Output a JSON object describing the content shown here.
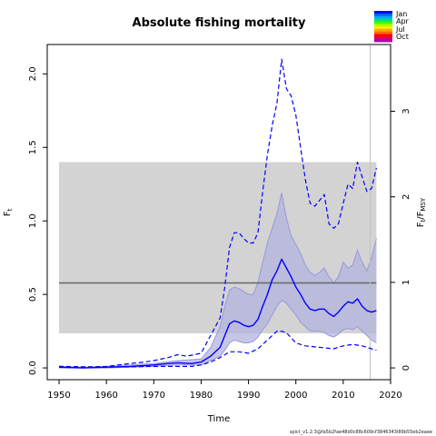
{
  "chart_data": {
    "type": "line",
    "title": "Absolute fishing mortality",
    "xlabel": "Time",
    "ylabel_left": "F_t",
    "ylabel_right": "F_t/F_MSY",
    "xlim": [
      1947.5,
      2020
    ],
    "ylim": [
      -0.08,
      2.2
    ],
    "right_axis_factor": 0.582,
    "x_ticks": [
      1950,
      1960,
      1970,
      1980,
      1990,
      2000,
      2010,
      2020
    ],
    "y_ticks": [
      0.0,
      0.5,
      1.0,
      1.5,
      2.0
    ],
    "y_tick_labels": [
      "0.0",
      "0.5",
      "1.0",
      "1.5",
      "2.0"
    ],
    "right_ticks": [
      0,
      1,
      2,
      3
    ],
    "right_tick_labels": [
      "0",
      "1",
      "2",
      "3"
    ],
    "fmsy_band": {
      "x": [
        1950,
        2017
      ],
      "y": [
        0.235,
        1.4
      ]
    },
    "fmsy_line": {
      "x": [
        1950,
        2017
      ],
      "y": 0.578
    },
    "last_data_year": 2015.7,
    "colors": {
      "estimate": "#0000ff",
      "ci_band": "#b3b3dd",
      "ci_line": "#9999dd",
      "fmsy_band": "#d3d3d3",
      "fmsy_line": "#666666",
      "vline": "#bfbfbf"
    },
    "series": [
      {
        "style": "solid",
        "x": [
          1950,
          1955,
          1960,
          1965,
          1970,
          1973,
          1975,
          1978,
          1980,
          1982,
          1984,
          1985,
          1986,
          1987,
          1988,
          1989,
          1990,
          1991,
          1992,
          1993,
          1994,
          1995,
          1996,
          1997,
          1998,
          1999,
          2000,
          2001,
          2002,
          2003,
          2004,
          2005,
          2006,
          2007,
          2008,
          2009,
          2010,
          2011,
          2012,
          2013,
          2014,
          2015,
          2016,
          2017
        ],
        "y": [
          0.005,
          0.0,
          0.005,
          0.01,
          0.02,
          0.03,
          0.035,
          0.03,
          0.04,
          0.08,
          0.14,
          0.22,
          0.3,
          0.32,
          0.31,
          0.29,
          0.28,
          0.29,
          0.33,
          0.42,
          0.5,
          0.6,
          0.66,
          0.74,
          0.68,
          0.62,
          0.55,
          0.5,
          0.44,
          0.4,
          0.39,
          0.4,
          0.4,
          0.37,
          0.35,
          0.38,
          0.42,
          0.45,
          0.44,
          0.47,
          0.42,
          0.39,
          0.38,
          0.39
        ]
      },
      {
        "style": "dashed",
        "x": [
          1950,
          1955,
          1960,
          1965,
          1968,
          1970,
          1973,
          1975,
          1977,
          1980,
          1982,
          1984,
          1985,
          1986,
          1987,
          1988,
          1989,
          1990,
          1991,
          1992,
          1993,
          1994,
          1995,
          1996,
          1997,
          1998,
          1999,
          2000,
          2001,
          2002,
          2003,
          2004,
          2005,
          2006,
          2007,
          2008,
          2009,
          2010,
          2011,
          2012,
          2013,
          2014,
          2015,
          2016,
          2017
        ],
        "y": [
          0.01,
          0.005,
          0.01,
          0.03,
          0.04,
          0.05,
          0.07,
          0.09,
          0.08,
          0.1,
          0.22,
          0.34,
          0.55,
          0.82,
          0.92,
          0.92,
          0.88,
          0.85,
          0.85,
          0.92,
          1.2,
          1.45,
          1.65,
          1.8,
          2.1,
          1.9,
          1.85,
          1.72,
          1.5,
          1.28,
          1.12,
          1.1,
          1.14,
          1.18,
          0.98,
          0.95,
          0.98,
          1.12,
          1.25,
          1.22,
          1.4,
          1.3,
          1.2,
          1.22,
          1.36
        ]
      },
      {
        "style": "dashed",
        "x": [
          1950,
          1960,
          1970,
          1978,
          1980,
          1982,
          1984,
          1986,
          1988,
          1990,
          1992,
          1994,
          1996,
          1997,
          1998,
          2000,
          2002,
          2005,
          2008,
          2010,
          2012,
          2014,
          2016,
          2017
        ],
        "y": [
          0.01,
          0.005,
          0.01,
          0.01,
          0.02,
          0.04,
          0.07,
          0.11,
          0.11,
          0.1,
          0.13,
          0.19,
          0.25,
          0.25,
          0.24,
          0.17,
          0.15,
          0.14,
          0.13,
          0.15,
          0.16,
          0.15,
          0.13,
          0.12
        ]
      }
    ],
    "ci_band": {
      "x": [
        1950,
        1955,
        1960,
        1965,
        1970,
        1975,
        1980,
        1982,
        1984,
        1985,
        1986,
        1987,
        1988,
        1989,
        1990,
        1991,
        1992,
        1993,
        1994,
        1995,
        1996,
        1997,
        1998,
        1999,
        2000,
        2001,
        2002,
        2003,
        2004,
        2005,
        2006,
        2007,
        2008,
        2009,
        2010,
        2011,
        2012,
        2013,
        2014,
        2015,
        2016,
        2017
      ],
      "upper": [
        0.01,
        0.005,
        0.01,
        0.02,
        0.03,
        0.05,
        0.06,
        0.14,
        0.28,
        0.42,
        0.53,
        0.55,
        0.54,
        0.52,
        0.5,
        0.5,
        0.58,
        0.72,
        0.85,
        0.95,
        1.05,
        1.19,
        1.02,
        0.9,
        0.84,
        0.78,
        0.7,
        0.65,
        0.63,
        0.65,
        0.68,
        0.62,
        0.58,
        0.62,
        0.72,
        0.68,
        0.7,
        0.8,
        0.72,
        0.66,
        0.75,
        0.88
      ],
      "lower": [
        0.0,
        0.0,
        0.0,
        0.005,
        0.01,
        0.02,
        0.02,
        0.05,
        0.08,
        0.12,
        0.17,
        0.19,
        0.18,
        0.17,
        0.17,
        0.18,
        0.21,
        0.26,
        0.3,
        0.36,
        0.42,
        0.46,
        0.44,
        0.4,
        0.36,
        0.31,
        0.28,
        0.25,
        0.25,
        0.25,
        0.24,
        0.22,
        0.21,
        0.23,
        0.26,
        0.27,
        0.26,
        0.28,
        0.25,
        0.22,
        0.19,
        0.17
      ]
    },
    "legend": [
      "Jan",
      "Apr",
      "Jul",
      "Oct"
    ],
    "legend_colors": [
      "#0000ff",
      "#0066ff",
      "#00aaff",
      "#00dd88",
      "#33ff00",
      "#aaff00",
      "#ffee00",
      "#ffaa00",
      "#ff6600",
      "#ff0000",
      "#dd0055",
      "#aa00aa"
    ]
  },
  "footer": "spict_v1.2.3@fa5b2fae48d0c88c609cf3846343l89b55eb2eaee"
}
